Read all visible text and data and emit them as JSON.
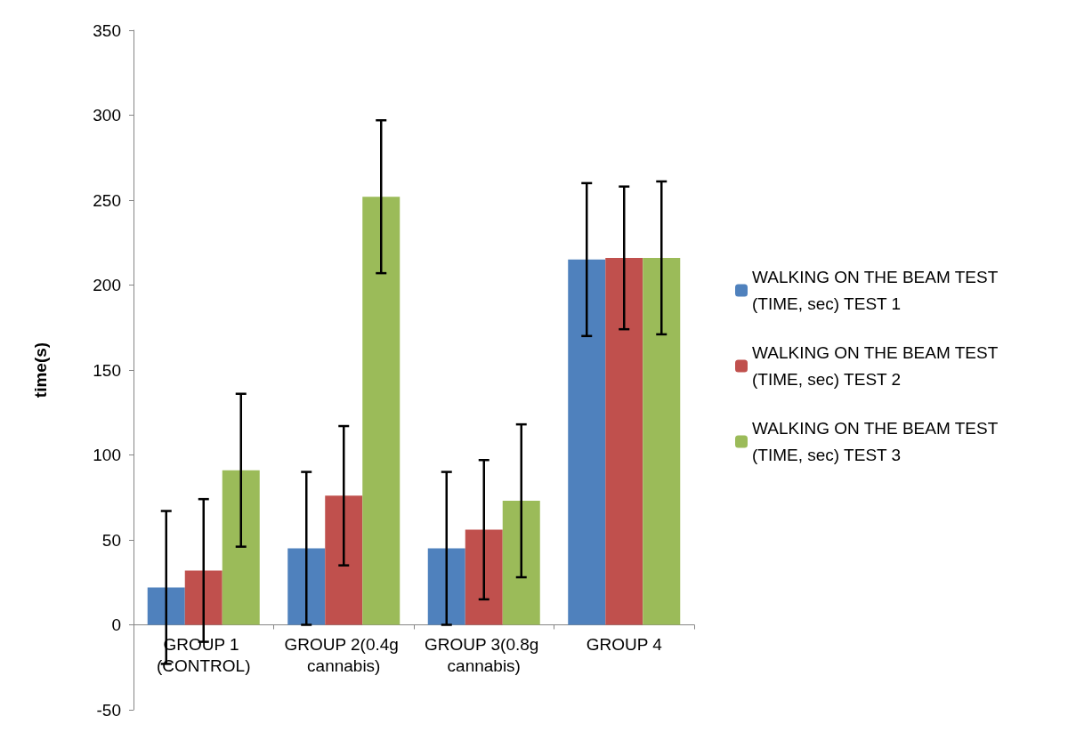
{
  "chart_data": {
    "type": "bar",
    "ylabel": "time(s)",
    "categories": [
      "GROUP 1 (CONTROL)",
      "GROUP 2(0.4g cannabis)",
      "GROUP 3(0.8g cannabis)",
      "GROUP 4"
    ],
    "series": [
      {
        "name": "WALKING ON THE BEAM TEST (TIME, sec) TEST 1",
        "color": "#4f81bd",
        "values": [
          22,
          45,
          45,
          215
        ],
        "errors": [
          45,
          45,
          45,
          45
        ]
      },
      {
        "name": "WALKING ON THE BEAM TEST (TIME, sec) TEST 2",
        "color": "#c0504d",
        "values": [
          32,
          76,
          56,
          216
        ],
        "errors": [
          42,
          41,
          41,
          42
        ]
      },
      {
        "name": "WALKING ON THE BEAM TEST (TIME, sec) TEST 3",
        "color": "#9bbb59",
        "values": [
          91,
          252,
          73,
          216
        ],
        "errors": [
          45,
          45,
          45,
          45
        ]
      }
    ],
    "ylim": [
      -50,
      350
    ],
    "yticks": [
      -50,
      0,
      50,
      100,
      150,
      200,
      250,
      300,
      350
    ],
    "grid": false,
    "legend": "right"
  }
}
